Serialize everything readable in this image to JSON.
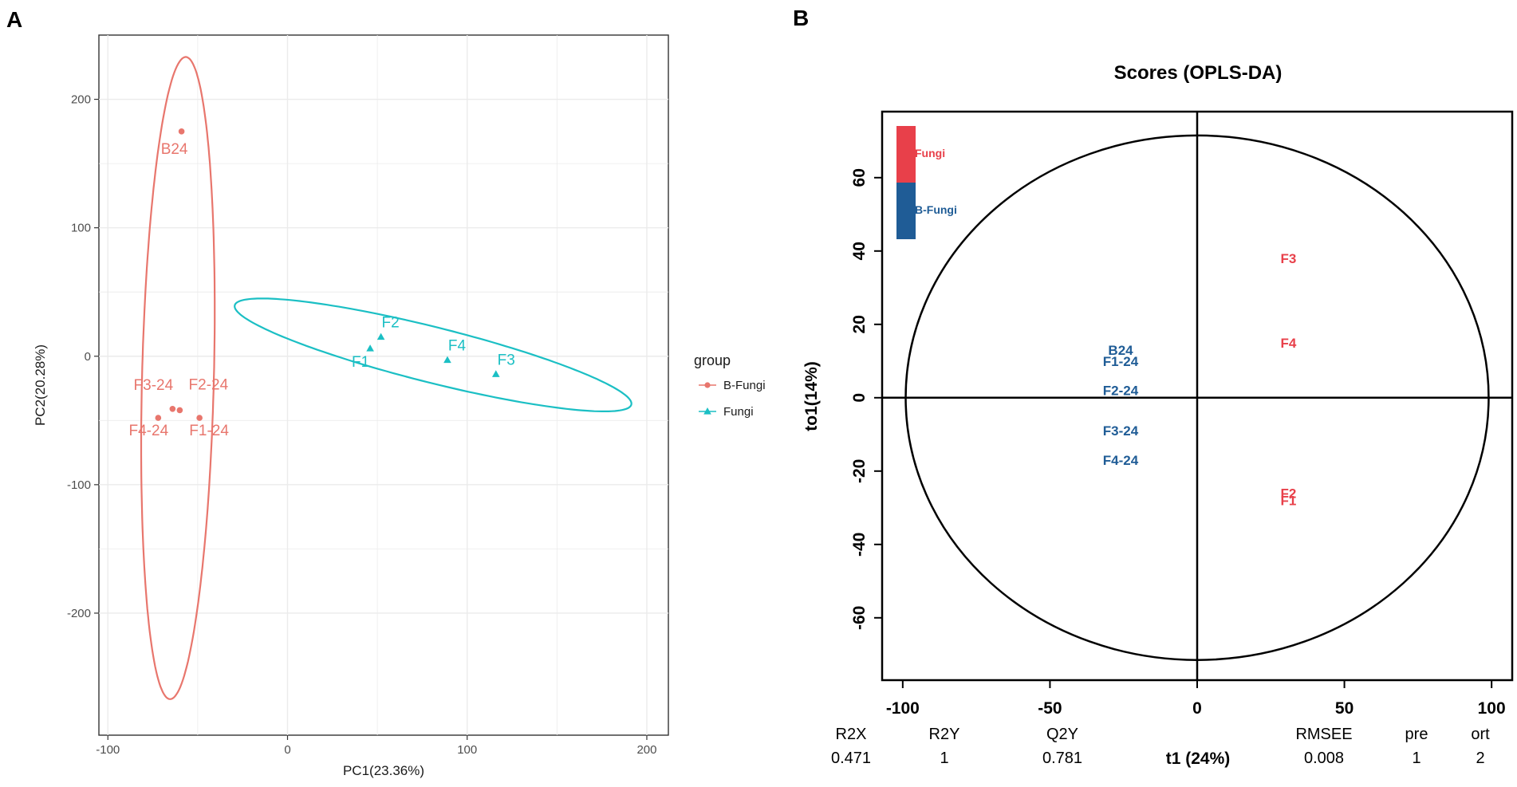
{
  "panel_labels": {
    "a": "A",
    "b": "B"
  },
  "colors": {
    "b_fungi": "#E8766D",
    "fungi": "#1BBFC4",
    "oplsda_fungi": "#E8404A",
    "oplsda_bfungi": "#1F5C96",
    "grid": "#EBEBEB",
    "axis": "#333333"
  },
  "chart_data": [
    {
      "id": "pca",
      "type": "scatter",
      "title": "",
      "xlabel": "PC1(23.36%)",
      "ylabel": "PC2(20.28%)",
      "xlim": [
        -105,
        212
      ],
      "ylim": [
        -295,
        250
      ],
      "xticks": [
        -100,
        0,
        100,
        200
      ],
      "xtick_labels": [
        "-100",
        "0",
        "100",
        "200"
      ],
      "yticks": [
        -200,
        -100,
        0,
        100,
        200
      ],
      "ytick_labels": [
        "-200",
        "-100",
        "0",
        "100",
        "200"
      ],
      "grid": true,
      "legend": {
        "title": "group",
        "position": "right",
        "entries": [
          {
            "label": "B-Fungi",
            "marker": "circle",
            "color": "#E8766D"
          },
          {
            "label": "Fungi",
            "marker": "triangle",
            "color": "#1BBFC4"
          }
        ]
      },
      "series": [
        {
          "name": "B-Fungi",
          "marker": "circle",
          "color": "#E8766D",
          "points": [
            {
              "label": "B24",
              "x": -59,
              "y": 175
            },
            {
              "label": "F3-24",
              "x": -64,
              "y": -41
            },
            {
              "label": "F2-24",
              "x": -60,
              "y": -42
            },
            {
              "label": "F4-24",
              "x": -72,
              "y": -48
            },
            {
              "label": "F1-24",
              "x": -49,
              "y": -48
            }
          ],
          "ellipse": {
            "center": [
              -61,
              -17
            ],
            "semi_axes": [
              20,
              250
            ],
            "angle_deg": -1.0
          }
        },
        {
          "name": "Fungi",
          "marker": "triangle",
          "color": "#1BBFC4",
          "points": [
            {
              "label": "F2",
              "x": 52,
              "y": 15
            },
            {
              "label": "F1",
              "x": 46,
              "y": 6
            },
            {
              "label": "F4",
              "x": 89,
              "y": -3
            },
            {
              "label": "F3",
              "x": 116,
              "y": -14
            }
          ],
          "ellipse": {
            "center": [
              81,
              1
            ],
            "semi_axes": [
              117,
              21
            ],
            "angle_deg": -19.6
          }
        }
      ]
    },
    {
      "id": "oplsda",
      "type": "scatter",
      "title": "Scores (OPLS-DA)",
      "xlabel": "t1 (24%)",
      "ylabel": "to1(14%)",
      "xlim": [
        -107,
        107
      ],
      "ylim": [
        -77,
        78
      ],
      "xticks": [
        -100,
        -50,
        0,
        50,
        100
      ],
      "xtick_labels": [
        "-100",
        "-50",
        "0",
        "50",
        "100"
      ],
      "yticks": [
        -60,
        -40,
        -20,
        0,
        20,
        40,
        60
      ],
      "ytick_labels": [
        "-60",
        "-40",
        "-20",
        "0",
        "20",
        "40",
        "60"
      ],
      "grid": false,
      "ellipse": {
        "center": [
          0,
          0
        ],
        "semi_axes": [
          99,
          71.5
        ]
      },
      "legend": {
        "position": "top-left",
        "entries": [
          {
            "label": "Fungi",
            "color": "#E8404A"
          },
          {
            "label": "B-Fungi",
            "color": "#1F5C96"
          }
        ]
      },
      "series": [
        {
          "name": "Fungi",
          "color": "#E8404A",
          "points": [
            {
              "label": "F3",
              "x": 31,
              "y": 38
            },
            {
              "label": "F4",
              "x": 31,
              "y": 15
            },
            {
              "label": "F2",
              "x": 31,
              "y": -26
            },
            {
              "label": "F1",
              "x": 31,
              "y": -28
            }
          ]
        },
        {
          "name": "B-Fungi",
          "color": "#1F5C96",
          "points": [
            {
              "label": "B24",
              "x": -26,
              "y": 13
            },
            {
              "label": "F1-24",
              "x": -26,
              "y": 10
            },
            {
              "label": "F2-24",
              "x": -26,
              "y": 2
            },
            {
              "label": "F3-24",
              "x": -26,
              "y": -9
            },
            {
              "label": "F4-24",
              "x": -26,
              "y": -17
            }
          ]
        }
      ],
      "stats": [
        {
          "name": "R2X",
          "value": "0.471"
        },
        {
          "name": "R2Y",
          "value": "1"
        },
        {
          "name": "Q2Y",
          "value": "0.781"
        },
        {
          "name": "RMSEE",
          "value": "0.008"
        },
        {
          "name": "pre",
          "value": "1"
        },
        {
          "name": "ort",
          "value": "2"
        }
      ]
    }
  ]
}
